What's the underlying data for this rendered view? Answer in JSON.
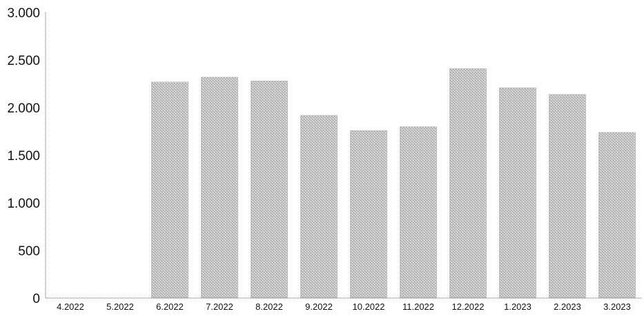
{
  "chart_data": {
    "type": "bar",
    "title": "",
    "xlabel": "",
    "ylabel": "",
    "categories": [
      "4.2022",
      "5.2022",
      "6.2022",
      "7.2022",
      "8.2022",
      "9.2022",
      "10.2022",
      "11.2022",
      "12.2022",
      "1.2023",
      "2.2023",
      "3.2023"
    ],
    "values": [
      0,
      0,
      2270,
      2320,
      2280,
      1920,
      1760,
      1800,
      2410,
      2210,
      2140,
      1740
    ],
    "ylim": [
      0,
      3000
    ],
    "yticks": [
      0,
      500,
      1000,
      1500,
      2000,
      2500,
      3000
    ],
    "ytick_labels": [
      "0",
      "500",
      "1.000",
      "1.500",
      "2.000",
      "2.500",
      "3.000"
    ],
    "grid": false,
    "legend": "none",
    "bar_color": "#b4b4b4",
    "axis_color": "#555555"
  }
}
